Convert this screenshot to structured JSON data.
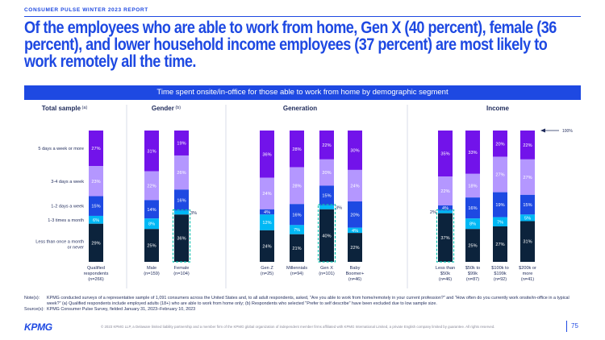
{
  "header": {
    "report_label": "CONSUMER PULSE WINTER 2023 REPORT",
    "headline": "Of the employees who are able to work from home, Gen X (40 percent), female (36 percent), and lower household income employees (37 percent) are most likely to work remotely all the time."
  },
  "colors": {
    "brand": "#1e49e2",
    "seg_5days": "#7213ea",
    "seg_3to4": "#b497ff",
    "seg_1to2": "#1e49e2",
    "seg_1to3month": "#00b8f5",
    "seg_less": "#0c233c",
    "highlight_dash": "#00c0ae"
  },
  "chart_data": {
    "type": "bar",
    "stacked": true,
    "title": "Time spent onsite/in-office for those able to work from home by demographic segment",
    "series_names": [
      "5 days a week or more",
      "3-4 days a week",
      "1-2 days a week",
      "1-3 times a month",
      "Less than once a month or never"
    ],
    "y_marker": "100%",
    "groups": [
      {
        "name": "Total sample",
        "superscript": "(a)",
        "bars": [
          {
            "label": "Qualified respondents (n=266)",
            "values": [
              27,
              23,
              15,
              6,
              29
            ],
            "outside_label": null,
            "highlight": false
          }
        ]
      },
      {
        "name": "Gender",
        "superscript": "(b)",
        "bars": [
          {
            "label": "Male (n=159)",
            "values": [
              31,
              22,
              14,
              8,
              25
            ],
            "outside_label": null,
            "highlight": false
          },
          {
            "label": "Female (n=104)",
            "values": [
              19,
              26,
              16,
              3,
              36
            ],
            "outside_label": "3%",
            "highlight": true
          }
        ]
      },
      {
        "name": "Generation",
        "superscript": "",
        "bars": [
          {
            "label": "Gen Z (n=25)",
            "values": [
              36,
              24,
              4,
              12,
              24
            ],
            "outside_label": null,
            "highlight": false
          },
          {
            "label": "Millennials (n=94)",
            "values": [
              28,
              28,
              16,
              7,
              21
            ],
            "outside_label": null,
            "highlight": false
          },
          {
            "label": "Gen X (n=101)",
            "values": [
              22,
              20,
              15,
              3,
              40
            ],
            "outside_label": "3%",
            "highlight": true
          },
          {
            "label": "Baby Boomer+ (n=46)",
            "values": [
              30,
              24,
              20,
              4,
              22
            ],
            "outside_label": null,
            "highlight": false
          }
        ]
      },
      {
        "name": "Income",
        "superscript": "",
        "bars": [
          {
            "label": "Less than $50k (n=46)",
            "values": [
              35,
              22,
              4,
              2,
              37
            ],
            "outside_label": "2%",
            "highlight": true
          },
          {
            "label": "$50k to $99k (n=87)",
            "values": [
              33,
              18,
              16,
              8,
              25
            ],
            "outside_label": null,
            "highlight": false
          },
          {
            "label": "$100k to $199k (n=92)",
            "values": [
              20,
              27,
              19,
              7,
              27
            ],
            "outside_label": null,
            "highlight": false
          },
          {
            "label": "$200k or more (n=41)",
            "values": [
              22,
              27,
              15,
              5,
              31
            ],
            "outside_label": null,
            "highlight": false
          }
        ]
      }
    ]
  },
  "footnotes": {
    "note_label": "Note(s):",
    "note_text": "KPMG conducted surveys of a representative sample of 1,091 consumers across the United States and, to all adult respondents, asked, \"Are you able to work from home/remotely in your current profession?\" and \"How often do you currently work onsite/in-office in a typical week?\" (a) Qualified respondents include employed adults (18+) who are able to work from home only; (b) Respondents who selected \"Prefer to self describe\" have been excluded due to low sample size.",
    "source_label": "Source(s):",
    "source_text": "KPMG Consumer Pulse Survey, fielded January 31, 2023–February 10, 2023"
  },
  "footer": {
    "logo": "KPMG",
    "legal": "© 2023 KPMG LLP, a Delaware limited liability partnership and a member firm of the KPMG global organization of independent member firms affiliated with KPMG International Limited, a private English company limited by guarantee. All rights reserved.",
    "page_number": "75"
  }
}
